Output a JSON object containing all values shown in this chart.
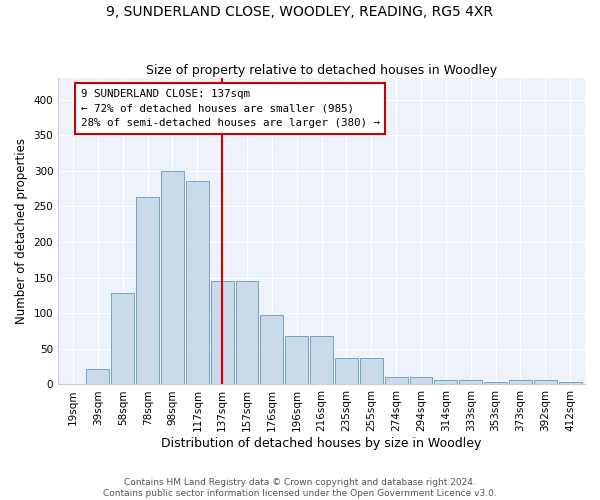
{
  "title1": "9, SUNDERLAND CLOSE, WOODLEY, READING, RG5 4XR",
  "title2": "Size of property relative to detached houses in Woodley",
  "xlabel": "Distribution of detached houses by size in Woodley",
  "ylabel": "Number of detached properties",
  "footnote1": "Contains HM Land Registry data © Crown copyright and database right 2024.",
  "footnote2": "Contains public sector information licensed under the Open Government Licence v3.0.",
  "annotation_line1": "9 SUNDERLAND CLOSE: 137sqm",
  "annotation_line2": "← 72% of detached houses are smaller (985)",
  "annotation_line3": "28% of semi-detached houses are larger (380) →",
  "marker_idx": 6,
  "bin_labels": [
    "19sqm",
    "39sqm",
    "58sqm",
    "78sqm",
    "98sqm",
    "117sqm",
    "137sqm",
    "157sqm",
    "176sqm",
    "196sqm",
    "216sqm",
    "235sqm",
    "255sqm",
    "274sqm",
    "294sqm",
    "314sqm",
    "333sqm",
    "353sqm",
    "373sqm",
    "392sqm",
    "412sqm"
  ],
  "bar_heights": [
    0,
    22,
    128,
    263,
    300,
    285,
    145,
    145,
    97,
    68,
    68,
    37,
    37,
    10,
    10,
    6,
    6,
    3,
    6,
    6,
    3
  ],
  "bar_color": "#c9daea",
  "bar_edge_color": "#6699bb",
  "marker_color": "#cc0000",
  "annotation_box_color": "#cc0000",
  "background_color": "#eef2fb",
  "ylim": [
    0,
    430
  ],
  "yticks": [
    0,
    50,
    100,
    150,
    200,
    250,
    300,
    350,
    400
  ],
  "title1_fontsize": 10,
  "title2_fontsize": 9,
  "xlabel_fontsize": 9,
  "ylabel_fontsize": 8.5,
  "tick_fontsize": 7.5,
  "footnote_fontsize": 6.5
}
